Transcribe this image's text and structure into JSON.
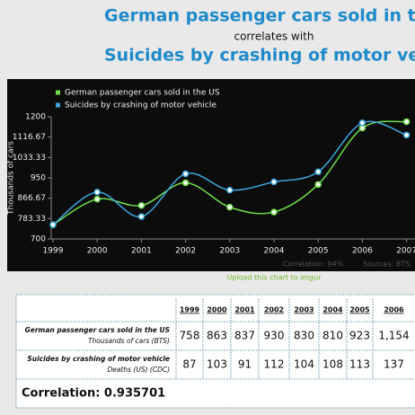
{
  "header": {
    "title": "German passenger cars sold in the",
    "subtitle": "correlates with",
    "title2": "Suicides by crashing of motor vehi"
  },
  "chart_data": {
    "type": "line",
    "categories": [
      "1999",
      "2000",
      "2001",
      "2002",
      "2003",
      "2004",
      "2005",
      "2006",
      "2007"
    ],
    "ylabel": "Thousands of cars",
    "ylim": [
      700,
      1200
    ],
    "yticks": [
      700,
      783.33,
      866.67,
      950,
      1033.33,
      1116.67,
      1200
    ],
    "y2lim": [
      80,
      140
    ],
    "legend": "upper left",
    "series": [
      {
        "name": "German passenger cars sold in the US",
        "color": "#6fe04a",
        "values": [
          758,
          863,
          837,
          930,
          830,
          810,
          923,
          1154,
          1180
        ]
      },
      {
        "name": "Suicides by crashing of motor vehicle",
        "color": "#3da5e0",
        "axis": "y2",
        "values": [
          87,
          103,
          91,
          112,
          104,
          108,
          113,
          137,
          131
        ]
      }
    ],
    "footer": {
      "correlation": "Correlation: 94%",
      "sources": "Sources: BTS"
    }
  },
  "link": "Upload this chart to imgur",
  "table": {
    "years": [
      "1999",
      "2000",
      "2001",
      "2002",
      "2003",
      "2004",
      "2005",
      "2006"
    ],
    "rows": [
      {
        "label": "German passenger cars sold in the US",
        "unit": "Thousands of cars (BTS)",
        "values": [
          "758",
          "863",
          "837",
          "930",
          "830",
          "810",
          "923",
          "1,154"
        ]
      },
      {
        "label": "Suicides by crashing of motor vehicle",
        "unit": "Deaths (US) (CDC)",
        "values": [
          "87",
          "103",
          "91",
          "112",
          "104",
          "108",
          "113",
          "137"
        ]
      }
    ],
    "correlation": "Correlation: 0.935701"
  }
}
